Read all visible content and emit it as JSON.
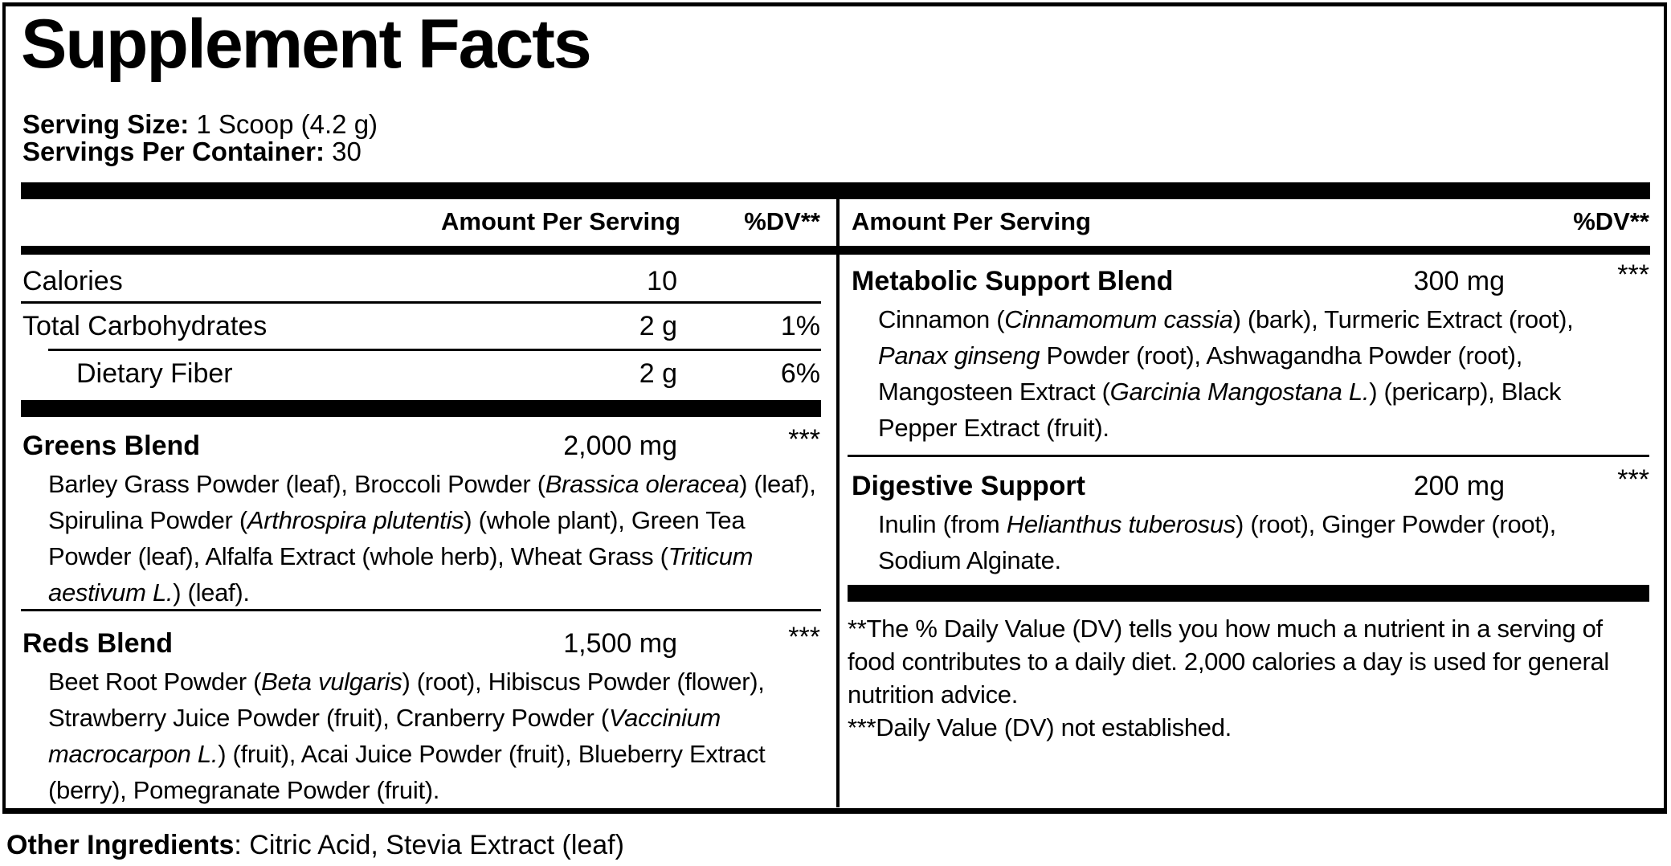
{
  "title": "Supplement Facts",
  "colors": {
    "ink": "#000000",
    "background": "#ffffff"
  },
  "serving": {
    "size_label": "Serving Size:",
    "size_value": " 1 Scoop (4.2 g)",
    "container_label": "Servings Per Container:",
    "container_value": " 30"
  },
  "columns": {
    "left": {
      "header": {
        "amount": "Amount Per Serving",
        "dv": "%DV**"
      },
      "nutrients": [
        {
          "name": "Calories",
          "amount": "10",
          "dv": ""
        },
        {
          "name": "Total Carbohydrates",
          "amount": "2 g",
          "dv": "1%"
        },
        {
          "name": "Dietary Fiber",
          "amount": "2 g",
          "dv": "6%"
        }
      ],
      "blends": [
        {
          "name": "Greens Blend",
          "amount": "2,000 mg",
          "dv": "***",
          "ingredients": [
            {
              "t": "Barley Grass Powder (leaf), Broccoli Powder (",
              "i": false
            },
            {
              "t": "Brassica oleracea",
              "i": true
            },
            {
              "t": ") (leaf), Spirulina Powder (",
              "i": false
            },
            {
              "t": "Arthrospira plutentis",
              "i": true
            },
            {
              "t": ") (whole plant), Green Tea Powder (leaf), Alfalfa Extract (whole herb), Wheat Grass (",
              "i": false
            },
            {
              "t": "Triticum aestivum L.",
              "i": true
            },
            {
              "t": ") (leaf).",
              "i": false
            }
          ]
        },
        {
          "name": "Reds Blend",
          "amount": "1,500 mg",
          "dv": "***",
          "ingredients": [
            {
              "t": "Beet Root Powder (",
              "i": false
            },
            {
              "t": "Beta vulgaris",
              "i": true
            },
            {
              "t": ") (root), Hibiscus Powder (flower), Strawberry Juice Powder (fruit), Cranberry Powder (",
              "i": false
            },
            {
              "t": "Vaccinium macrocarpon L.",
              "i": true
            },
            {
              "t": ") (fruit), Acai Juice Powder (fruit), Blueberry Extract (berry), Pomegranate Powder (fruit).",
              "i": false
            }
          ]
        }
      ]
    },
    "right": {
      "header": {
        "amount": "Amount Per Serving",
        "dv": "%DV**"
      },
      "blends": [
        {
          "name": "Metabolic Support Blend",
          "amount": "300 mg",
          "dv": "***",
          "ingredients": [
            {
              "t": "Cinnamon (",
              "i": false
            },
            {
              "t": "Cinnamomum cassia",
              "i": true
            },
            {
              "t": ") (bark), Turmeric Extract (root), ",
              "i": false
            },
            {
              "t": "Panax ginseng",
              "i": true
            },
            {
              "t": " Powder (root), Ashwagandha Powder (root), Mangosteen Extract (",
              "i": false
            },
            {
              "t": "Garcinia Mangostana L.",
              "i": true
            },
            {
              "t": ") (pericarp), Black Pepper Extract (fruit).",
              "i": false
            }
          ]
        },
        {
          "name": "Digestive Support",
          "amount": "200 mg",
          "dv": "***",
          "ingredients": [
            {
              "t": "Inulin (from ",
              "i": false
            },
            {
              "t": "Helianthus tuberosus",
              "i": true
            },
            {
              "t": ") (root), Ginger Powder (root), Sodium Alginate.",
              "i": false
            }
          ]
        }
      ],
      "footnotes": [
        "**The % Daily Value (DV) tells you how much a nutrient in a serving of food contributes to a daily diet. 2,000 calories a day is used for general nutrition advice.",
        "***Daily Value (DV) not established."
      ]
    }
  },
  "other_ingredients": {
    "label": "Other Ingredients",
    "value": ": Citric Acid, Stevia Extract (leaf)"
  }
}
